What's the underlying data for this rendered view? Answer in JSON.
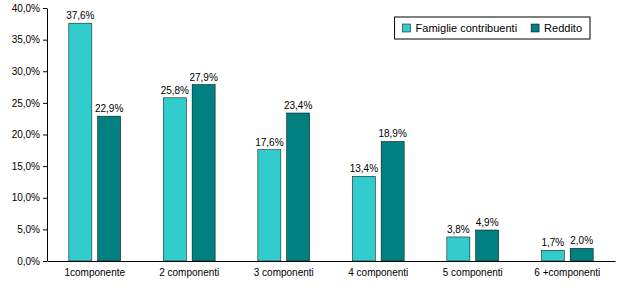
{
  "chart_data": {
    "type": "bar",
    "categories": [
      "1componente",
      "2 componenti",
      "3 componenti",
      "4 componenti",
      "5 componenti",
      "6 +componenti"
    ],
    "series": [
      {
        "name": "Famiglie contribuenti",
        "color": "#33cccc",
        "values": [
          37.6,
          25.8,
          17.6,
          13.4,
          3.8,
          1.7
        ],
        "value_labels": [
          "37,6%",
          "25,8%",
          "17,6%",
          "13,4%",
          "3,8%",
          "1,7%"
        ]
      },
      {
        "name": "Reddito",
        "color": "#008080",
        "values": [
          22.9,
          27.9,
          23.4,
          18.9,
          4.9,
          2.0
        ],
        "value_labels": [
          "22,9%",
          "27,9%",
          "23,4%",
          "18,9%",
          "4,9%",
          "2,0%"
        ]
      }
    ],
    "ylim": [
      0,
      40
    ],
    "yticks": [
      {
        "value": 0,
        "label": "0,0%"
      },
      {
        "value": 5,
        "label": "5,0%"
      },
      {
        "value": 10,
        "label": "10,0%"
      },
      {
        "value": 15,
        "label": "15,0%"
      },
      {
        "value": 20,
        "label": "20,0%"
      },
      {
        "value": 25,
        "label": "25,0%"
      },
      {
        "value": 30,
        "label": "30,0%"
      },
      {
        "value": 35,
        "label": "35,0%"
      },
      {
        "value": 40,
        "label": "40,0%"
      }
    ],
    "grid": false,
    "legend": "upper right",
    "data_labels": true
  }
}
